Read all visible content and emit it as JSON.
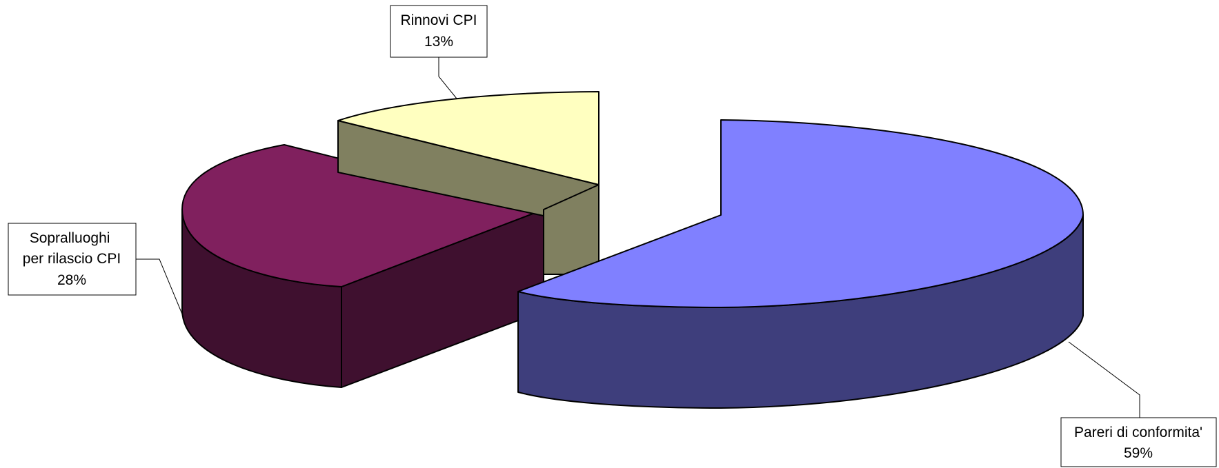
{
  "chart_data": {
    "type": "pie",
    "style": "3d-exploded",
    "title": "",
    "slices": [
      {
        "label": "Pareri di conformita'",
        "value": 59,
        "display": "59%",
        "top_color": "#8080ff",
        "side_color": "#3e3e7c"
      },
      {
        "label": "Sopralluoghi per rilascio CPI",
        "value": 28,
        "display": "28%",
        "top_color": "#80205e",
        "side_color": "#3f102f"
      },
      {
        "label": "Rinnovi CPI",
        "value": 13,
        "display": "13%",
        "top_color": "#ffffc0",
        "side_color": "#808060"
      }
    ],
    "legend": "none",
    "data_labels": "outside-with-leader-lines"
  }
}
